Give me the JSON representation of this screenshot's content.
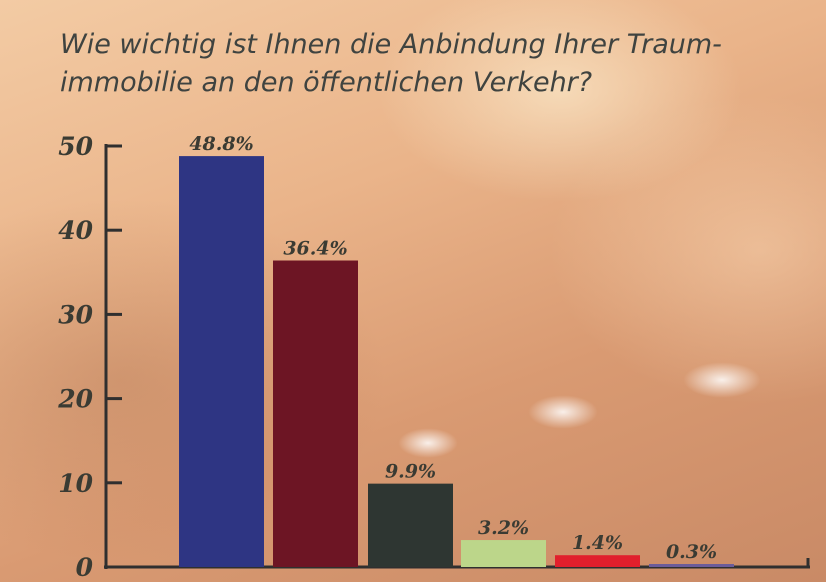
{
  "chart_data": {
    "type": "bar",
    "title": "Wie wichtig ist Ihnen die Anbindung Ihrer Traum- immobilie an den öffentlichen Verkehr?",
    "xlabel": "",
    "ylabel": "",
    "ylim": [
      0,
      50
    ],
    "yticks": [
      "0",
      "10",
      "20",
      "30",
      "40",
      "50"
    ],
    "values": [
      48.8,
      36.4,
      9.9,
      3.2,
      1.4,
      0.3
    ],
    "value_labels": [
      "48.8%",
      "36.4%",
      "9.9%",
      "3.2%",
      "1.4%",
      "0.3%"
    ],
    "colors": [
      "#2e3583",
      "#6d1524",
      "#2e3632",
      "#bcd68a",
      "#e11f2c",
      "#6b5c9a"
    ],
    "grid": false,
    "legend": "none"
  },
  "axis_color": "#2f2f2f"
}
